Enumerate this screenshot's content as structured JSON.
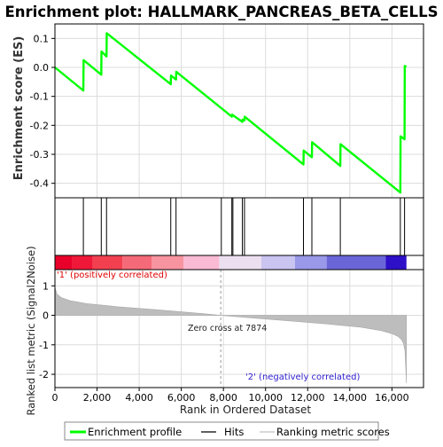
{
  "chart_data": {
    "type": "line",
    "title": "Enrichment plot: HALLMARK_PANCREAS_BETA_CELLS",
    "upper_panel": {
      "ylabel": "Enrichment score (ES)",
      "ylim": [
        -0.45,
        0.15
      ],
      "y_ticks": [
        0.1,
        0.0,
        -0.1,
        -0.2,
        -0.3,
        -0.4
      ],
      "y_tick_labels": [
        "0.1",
        "0.0",
        "-0.1",
        "-0.2",
        "-0.3",
        "-0.4"
      ],
      "grid": true,
      "series": [
        {
          "name": "Enrichment profile",
          "color": "#00ff00",
          "x": [
            0,
            1350,
            1360,
            2200,
            2210,
            2450,
            2460,
            5500,
            5510,
            5750,
            5760,
            8400,
            8410,
            8900,
            8910,
            9000,
            9010,
            11800,
            11810,
            12200,
            12210,
            13550,
            13560,
            16400,
            16410,
            16600,
            16610,
            16690
          ],
          "values": [
            0.0,
            -0.08,
            0.025,
            -0.025,
            0.055,
            0.038,
            0.118,
            -0.058,
            -0.028,
            -0.042,
            -0.015,
            -0.17,
            -0.163,
            -0.188,
            -0.18,
            -0.183,
            -0.17,
            -0.335,
            -0.287,
            -0.31,
            -0.258,
            -0.34,
            -0.265,
            -0.432,
            -0.238,
            -0.248,
            0.005,
            0.002
          ]
        }
      ]
    },
    "hits_panel": {
      "hit_positions": [
        1350,
        2200,
        2450,
        5500,
        5750,
        7900,
        8400,
        8450,
        8900,
        9000,
        11800,
        12200,
        13550,
        16400,
        16600
      ]
    },
    "heat_bar": {
      "segments": [
        {
          "from": 0,
          "to": 800,
          "color": "#e8002a"
        },
        {
          "from": 800,
          "to": 1800,
          "color": "#f01838"
        },
        {
          "from": 1800,
          "to": 3200,
          "color": "#f24050"
        },
        {
          "from": 3200,
          "to": 4600,
          "color": "#f56a78"
        },
        {
          "from": 4600,
          "to": 6100,
          "color": "#f894a0"
        },
        {
          "from": 6100,
          "to": 7800,
          "color": "#fbbad4"
        },
        {
          "from": 7800,
          "to": 9800,
          "color": "#ece0f0"
        },
        {
          "from": 9800,
          "to": 11400,
          "color": "#c9c4f0"
        },
        {
          "from": 11400,
          "to": 12900,
          "color": "#9a98e8"
        },
        {
          "from": 12900,
          "to": 15700,
          "color": "#6a66d8"
        },
        {
          "from": 15700,
          "to": 16690,
          "color": "#2d10c8"
        }
      ]
    },
    "lower_panel": {
      "ylabel": "Ranked list metric (Signal2Noise)",
      "xlabel": "Rank in Ordered Dataset",
      "ylim": [
        -2.45,
        1.55
      ],
      "y_ticks": [
        1,
        0,
        -1,
        -2
      ],
      "y_tick_labels": [
        "1",
        "0",
        "-1",
        "-2"
      ],
      "xlim": [
        0,
        17500
      ],
      "x_ticks": [
        0,
        2000,
        4000,
        6000,
        8000,
        10000,
        12000,
        14000,
        16000
      ],
      "x_tick_labels": [
        "0",
        "2,000",
        "4,000",
        "6,000",
        "8,000",
        "10,000",
        "12,000",
        "14,000",
        "16,000"
      ],
      "zero_cross": 7874,
      "zero_cross_label": "Zero cross at 7874",
      "positive_label": "'1' (positively correlated)",
      "negative_label": "'2' (negatively correlated)",
      "metric_curve": {
        "x": [
          0,
          100,
          300,
          700,
          1500,
          3000,
          5000,
          7000,
          7874,
          9000,
          11000,
          13000,
          14500,
          15500,
          16000,
          16300,
          16450,
          16550,
          16620,
          16660,
          16690
        ],
        "values": [
          0.95,
          0.72,
          0.6,
          0.5,
          0.4,
          0.29,
          0.18,
          0.06,
          0.0,
          -0.07,
          -0.18,
          -0.3,
          -0.4,
          -0.52,
          -0.62,
          -0.72,
          -0.82,
          -0.95,
          -1.2,
          -1.8,
          -2.3
        ]
      }
    },
    "legend": {
      "items": [
        {
          "label": "Enrichment profile",
          "color": "#00ff00"
        },
        {
          "label": "Hits",
          "color": "#000000"
        },
        {
          "label": "Ranking metric scores",
          "color": "#c0c0c0"
        }
      ]
    },
    "colors": {
      "positive_label": "#e00000",
      "negative_label": "#3020d0",
      "grid": "#dcdcdc",
      "metric_fill": "#bdbdbd"
    }
  }
}
